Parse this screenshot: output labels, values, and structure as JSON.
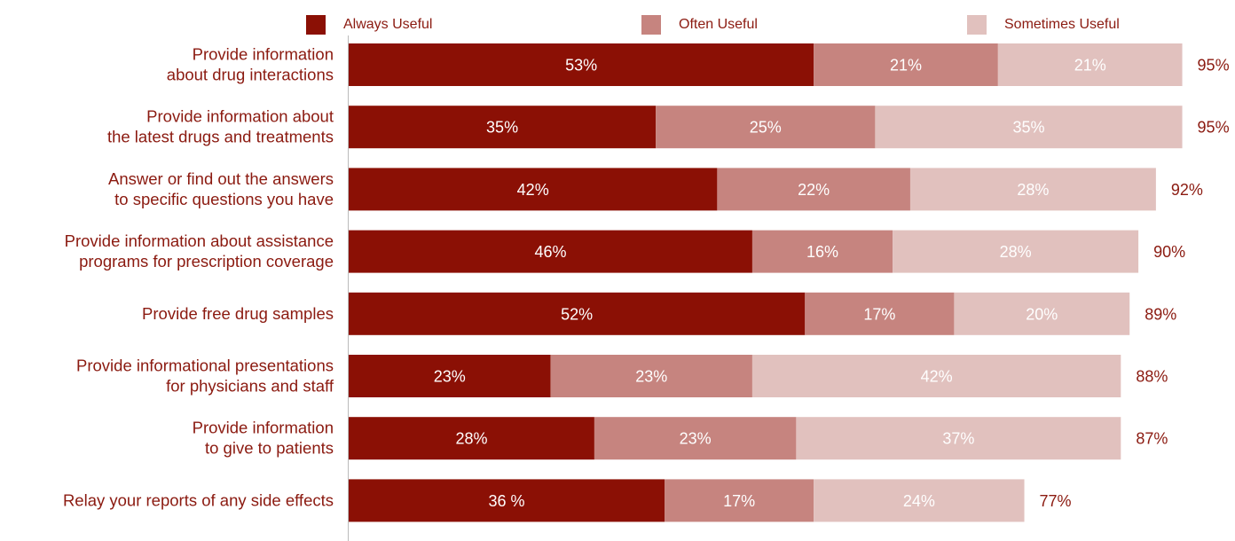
{
  "chart_data": {
    "type": "bar",
    "orientation": "horizontal",
    "stacked": true,
    "categories": [
      [
        "Provide information",
        "about drug interactions"
      ],
      [
        "Provide information about",
        "the latest drugs and treatments"
      ],
      [
        "Answer or find out the answers",
        "to specific questions you have"
      ],
      [
        "Provide information about assistance",
        "programs for prescription coverage"
      ],
      [
        "Provide free drug samples"
      ],
      [
        "Provide informational presentations",
        "for physicians and staff"
      ],
      [
        "Provide information",
        "to give to patients"
      ],
      [
        "Relay your reports of any side effects"
      ]
    ],
    "series": [
      {
        "name": "Always Useful",
        "color": "#8b1005",
        "values": [
          53,
          35,
          42,
          46,
          52,
          23,
          28,
          36
        ],
        "labels": [
          "53%",
          "35%",
          "42%",
          "46%",
          "52%",
          "23%",
          "28%",
          "36 %"
        ]
      },
      {
        "name": "Often Useful",
        "color": "#c6847f",
        "values": [
          21,
          25,
          22,
          16,
          17,
          23,
          23,
          17
        ],
        "labels": [
          "21%",
          "25%",
          "22%",
          "16%",
          "17%",
          "23%",
          "23%",
          "17%"
        ]
      },
      {
        "name": "Sometimes Useful",
        "color": "#e1c1be",
        "values": [
          21,
          35,
          28,
          28,
          20,
          42,
          37,
          24
        ],
        "labels": [
          "21%",
          "35%",
          "28%",
          "28%",
          "20%",
          "42%",
          "37%",
          "24%"
        ]
      }
    ],
    "totals": [
      95,
      95,
      92,
      90,
      89,
      88,
      87,
      77
    ],
    "total_labels": [
      "95%",
      "95%",
      "92%",
      "90%",
      "89%",
      "88%",
      "87%",
      "77%"
    ],
    "xlim": [
      0,
      100
    ],
    "grid": false,
    "legend_position": "top"
  }
}
